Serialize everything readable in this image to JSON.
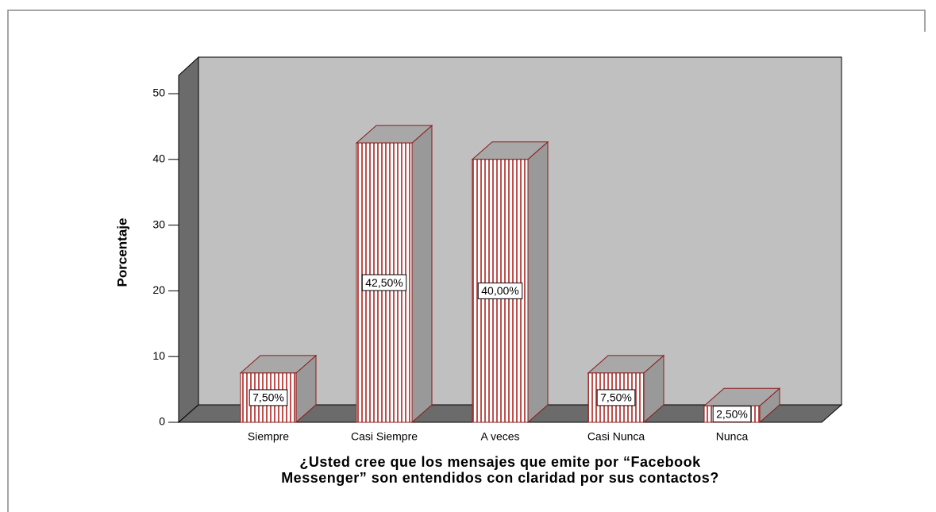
{
  "chart_data": {
    "type": "bar3d",
    "y_label": "Porcentaje",
    "x_label": "¿Usted cree que los mensajes que emite por “Facebook Messenger”  son entendidos con claridad por sus contactos?",
    "categories": [
      "Siempre",
      "Casi Siempre",
      "A veces",
      "Casi Nunca",
      "Nunca"
    ],
    "values": [
      7.5,
      42.5,
      40,
      7.5,
      2.5
    ],
    "value_labels": [
      "7,50%",
      "42,50%",
      "40,00%",
      "7,50%",
      "2,50%"
    ],
    "color": "#c0504d",
    "ylim": [
      0,
      50
    ],
    "yticks": [
      0,
      10,
      20,
      30,
      40,
      50
    ]
  }
}
